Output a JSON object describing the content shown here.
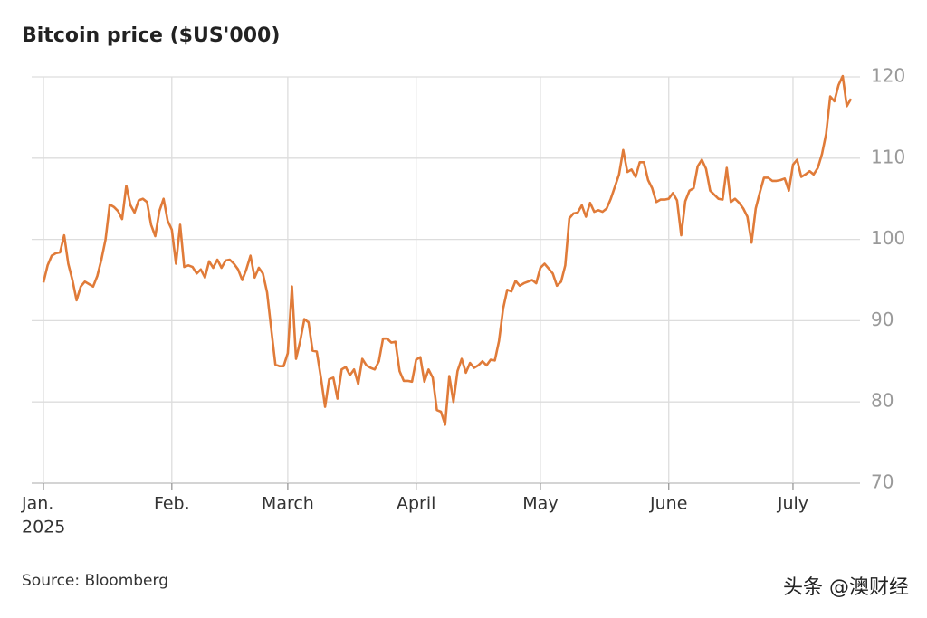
{
  "chart_data": {
    "type": "line",
    "title": "Bitcoin price ($US'000)",
    "source": "Source: Bloomberg",
    "watermark": "头条 @澳财经",
    "year_label": "2025",
    "color": "#e07b39",
    "grid": true,
    "ylim": [
      70,
      120
    ],
    "yticks": [
      70,
      80,
      90,
      100,
      110,
      120
    ],
    "categories": [
      "Jan.",
      null,
      null,
      null,
      null,
      null,
      null,
      null,
      null,
      null,
      null,
      null,
      null,
      null,
      null,
      null,
      null,
      null,
      null,
      null,
      null,
      null,
      null,
      null,
      null,
      null,
      null,
      null,
      null,
      null,
      null,
      "Feb.",
      null,
      null,
      null,
      null,
      null,
      null,
      null,
      null,
      null,
      null,
      null,
      null,
      null,
      null,
      null,
      null,
      null,
      null,
      null,
      null,
      null,
      null,
      null,
      null,
      null,
      null,
      null,
      "March",
      null,
      null,
      null,
      null,
      null,
      null,
      null,
      null,
      null,
      null,
      null,
      null,
      null,
      null,
      null,
      null,
      null,
      null,
      null,
      null,
      null,
      null,
      null,
      null,
      null,
      null,
      null,
      null,
      null,
      null,
      "April",
      null,
      null,
      null,
      null,
      null,
      null,
      null,
      null,
      null,
      null,
      null,
      null,
      null,
      null,
      null,
      null,
      null,
      null,
      null,
      null,
      null,
      null,
      null,
      null,
      null,
      null,
      null,
      null,
      null,
      "May",
      null,
      null,
      null,
      null,
      null,
      null,
      null,
      null,
      null,
      null,
      null,
      null,
      null,
      null,
      null,
      null,
      null,
      null,
      null,
      null,
      null,
      null,
      null,
      null,
      null,
      null,
      null,
      null,
      null,
      null,
      "June",
      null,
      null,
      null,
      null,
      null,
      null,
      null,
      null,
      null,
      null,
      null,
      null,
      null,
      null,
      null,
      null,
      null,
      null,
      null,
      null,
      null,
      null,
      null,
      null,
      null,
      null,
      null,
      null,
      null,
      "July",
      null,
      null,
      null,
      null,
      null,
      null,
      null,
      null,
      null,
      null,
      null,
      null,
      null,
      null
    ],
    "values": [
      94.7,
      96.8,
      98.0,
      98.3,
      98.4,
      100.5,
      97.0,
      95.0,
      92.5,
      94.2,
      94.8,
      94.5,
      94.2,
      95.5,
      97.5,
      100.0,
      104.3,
      104.0,
      103.5,
      102.5,
      106.6,
      104.2,
      103.3,
      104.8,
      105.0,
      104.6,
      101.8,
      100.4,
      103.5,
      105.0,
      102.3,
      101.2,
      97.0,
      101.8,
      96.6,
      96.8,
      96.6,
      95.8,
      96.3,
      95.3,
      97.3,
      96.5,
      97.5,
      96.5,
      97.4,
      97.5,
      97.0,
      96.3,
      95.0,
      96.3,
      98.0,
      95.3,
      96.5,
      95.8,
      93.5,
      89.0,
      84.6,
      84.4,
      84.4,
      86.0,
      94.2,
      85.3,
      87.5,
      90.2,
      89.8,
      86.3,
      86.2,
      83.0,
      79.4,
      82.8,
      83.0,
      80.4,
      84.0,
      84.3,
      83.3,
      84.0,
      82.2,
      85.3,
      84.5,
      84.2,
      84.0,
      85.0,
      87.8,
      87.8,
      87.3,
      87.4,
      83.8,
      82.6,
      82.6,
      82.5,
      85.2,
      85.5,
      82.5,
      84.0,
      83.0,
      79.0,
      78.8,
      77.2,
      83.2,
      80.0,
      83.8,
      85.3,
      83.6,
      84.8,
      84.2,
      84.5,
      85.0,
      84.5,
      85.2,
      85.1,
      87.5,
      91.5,
      93.8,
      93.6,
      94.9,
      94.3,
      94.6,
      94.8,
      95.0,
      94.6,
      96.5,
      97.0,
      96.4,
      95.8,
      94.3,
      94.8,
      96.8,
      102.6,
      103.2,
      103.3,
      104.2,
      102.8,
      104.5,
      103.4,
      103.6,
      103.4,
      103.8,
      105.0,
      106.5,
      108.0,
      111.0,
      108.3,
      108.6,
      107.7,
      109.5,
      109.5,
      107.3,
      106.3,
      104.6,
      104.9,
      104.9,
      105.0,
      105.7,
      104.8,
      100.5,
      104.7,
      106.0,
      106.3,
      109.0,
      109.8,
      108.7,
      106.0,
      105.5,
      105.0,
      104.9,
      108.8,
      104.6,
      105.0,
      104.5,
      103.8,
      102.8,
      99.6,
      103.8,
      105.8,
      107.6,
      107.6,
      107.2,
      107.2,
      107.3,
      107.5,
      106.0,
      109.2,
      109.8,
      107.7,
      108.0,
      108.4,
      108.0,
      108.8,
      110.5,
      113.0,
      117.6,
      117.0,
      119.0,
      120.1,
      116.4,
      117.3
    ]
  }
}
